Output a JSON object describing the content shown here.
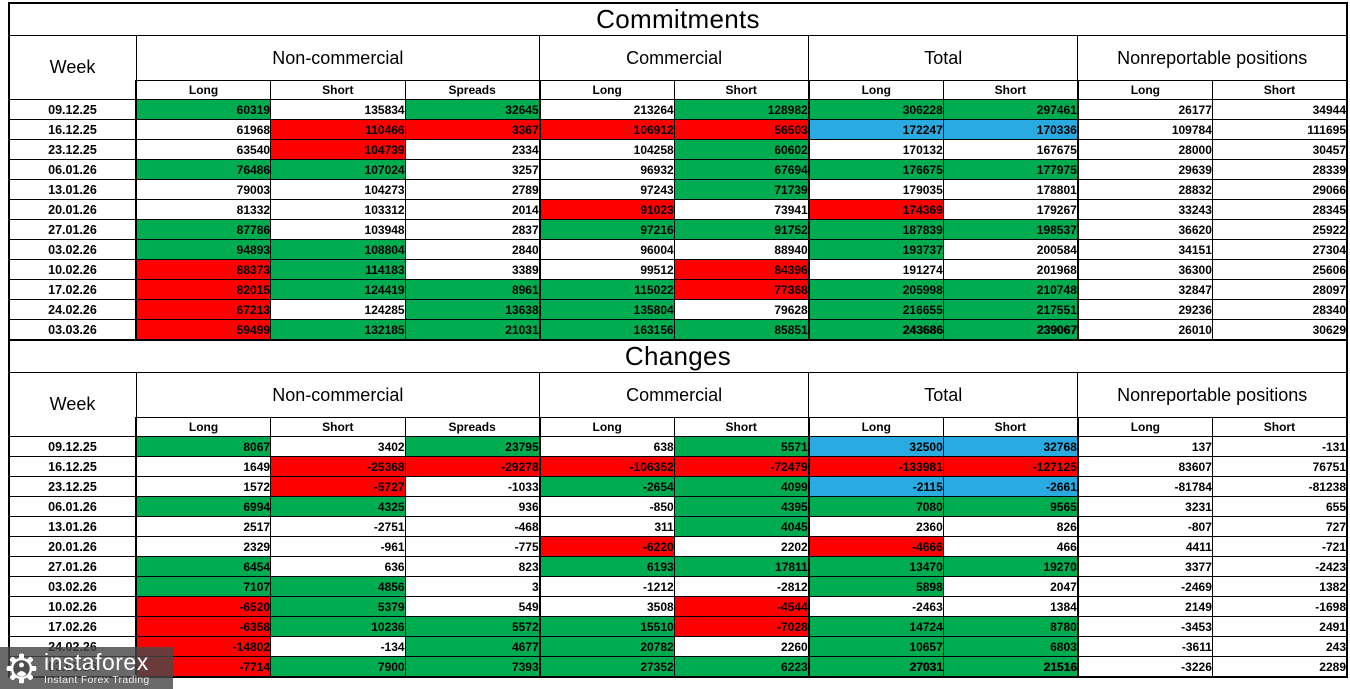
{
  "colors": {
    "G": "#00AC50",
    "R": "#FF0000",
    "B": "#29ABE2",
    "W": "#FFFFFF",
    "border": "#000000",
    "watermark_bg": "#484848"
  },
  "watermark": {
    "brand": "instaforex",
    "tagline": "Instant Forex Trading",
    "logo": "gear-person-icon"
  },
  "chart_data": [
    {
      "type": "table",
      "title": "Commitments",
      "week_label": "Week",
      "groups": [
        {
          "label": "Non-commercial",
          "cols": [
            "Long",
            "Short",
            "Spreads"
          ]
        },
        {
          "label": "Commercial",
          "cols": [
            "Long",
            "Short"
          ]
        },
        {
          "label": "Total",
          "cols": [
            "Long",
            "Short"
          ]
        },
        {
          "label": "Nonreportable positions",
          "cols": [
            "Long",
            "Short"
          ]
        }
      ],
      "rows": [
        {
          "week": "09.12.25",
          "cells": [
            [
              60319,
              "G"
            ],
            [
              135834,
              "W"
            ],
            [
              32645,
              "G"
            ],
            [
              213264,
              "W"
            ],
            [
              128982,
              "G"
            ],
            [
              306228,
              "G"
            ],
            [
              297461,
              "G"
            ],
            [
              26177,
              "W"
            ],
            [
              34944,
              "W"
            ]
          ]
        },
        {
          "week": "16.12.25",
          "cells": [
            [
              61968,
              "W"
            ],
            [
              110466,
              "R"
            ],
            [
              3367,
              "R"
            ],
            [
              106912,
              "R"
            ],
            [
              56503,
              "R"
            ],
            [
              172247,
              "B"
            ],
            [
              170336,
              "B"
            ],
            [
              109784,
              "W"
            ],
            [
              111695,
              "W"
            ]
          ]
        },
        {
          "week": "23.12.25",
          "cells": [
            [
              63540,
              "W"
            ],
            [
              104739,
              "R"
            ],
            [
              2334,
              "W"
            ],
            [
              104258,
              "W"
            ],
            [
              60602,
              "G"
            ],
            [
              170132,
              "W"
            ],
            [
              167675,
              "W"
            ],
            [
              28000,
              "W"
            ],
            [
              30457,
              "W"
            ]
          ]
        },
        {
          "week": "06.01.26",
          "cells": [
            [
              76486,
              "G"
            ],
            [
              107024,
              "G"
            ],
            [
              3257,
              "W"
            ],
            [
              96932,
              "W"
            ],
            [
              67694,
              "G"
            ],
            [
              176675,
              "G"
            ],
            [
              177975,
              "G"
            ],
            [
              29639,
              "W"
            ],
            [
              28339,
              "W"
            ]
          ]
        },
        {
          "week": "13.01.26",
          "cells": [
            [
              79003,
              "W"
            ],
            [
              104273,
              "W"
            ],
            [
              2789,
              "W"
            ],
            [
              97243,
              "W"
            ],
            [
              71739,
              "G"
            ],
            [
              179035,
              "W"
            ],
            [
              178801,
              "W"
            ],
            [
              28832,
              "W"
            ],
            [
              29066,
              "W"
            ]
          ]
        },
        {
          "week": "20.01.26",
          "cells": [
            [
              81332,
              "W"
            ],
            [
              103312,
              "W"
            ],
            [
              2014,
              "W"
            ],
            [
              91023,
              "R"
            ],
            [
              73941,
              "W"
            ],
            [
              174369,
              "R"
            ],
            [
              179267,
              "W"
            ],
            [
              33243,
              "W"
            ],
            [
              28345,
              "W"
            ]
          ]
        },
        {
          "week": "27.01.26",
          "cells": [
            [
              87786,
              "G"
            ],
            [
              103948,
              "W"
            ],
            [
              2837,
              "W"
            ],
            [
              97216,
              "G"
            ],
            [
              91752,
              "G"
            ],
            [
              187839,
              "G"
            ],
            [
              198537,
              "G"
            ],
            [
              36620,
              "W"
            ],
            [
              25922,
              "W"
            ]
          ]
        },
        {
          "week": "03.02.26",
          "cells": [
            [
              94893,
              "G"
            ],
            [
              108804,
              "G"
            ],
            [
              2840,
              "W"
            ],
            [
              96004,
              "W"
            ],
            [
              88940,
              "W"
            ],
            [
              193737,
              "G"
            ],
            [
              200584,
              "W"
            ],
            [
              34151,
              "W"
            ],
            [
              27304,
              "W"
            ]
          ]
        },
        {
          "week": "10.02.26",
          "cells": [
            [
              88373,
              "R"
            ],
            [
              114183,
              "G"
            ],
            [
              3389,
              "W"
            ],
            [
              99512,
              "W"
            ],
            [
              84396,
              "R"
            ],
            [
              191274,
              "W"
            ],
            [
              201968,
              "W"
            ],
            [
              36300,
              "W"
            ],
            [
              25606,
              "W"
            ]
          ]
        },
        {
          "week": "17.02.26",
          "cells": [
            [
              82015,
              "R"
            ],
            [
              124419,
              "G"
            ],
            [
              8961,
              "G"
            ],
            [
              115022,
              "G"
            ],
            [
              77368,
              "R"
            ],
            [
              205998,
              "G"
            ],
            [
              210748,
              "G"
            ],
            [
              32847,
              "W"
            ],
            [
              28097,
              "W"
            ]
          ]
        },
        {
          "week": "24.02.26",
          "cells": [
            [
              67213,
              "R"
            ],
            [
              124285,
              "W"
            ],
            [
              13638,
              "G"
            ],
            [
              135804,
              "G"
            ],
            [
              79628,
              "W"
            ],
            [
              216655,
              "G"
            ],
            [
              217551,
              "G"
            ],
            [
              29236,
              "W"
            ],
            [
              28340,
              "W"
            ]
          ]
        },
        {
          "week": "03.03.26",
          "cells": [
            [
              59499,
              "R"
            ],
            [
              132185,
              "G"
            ],
            [
              21031,
              "G"
            ],
            [
              163156,
              "G"
            ],
            [
              85851,
              "G"
            ],
            [
              243686,
              "G",
              true
            ],
            [
              239067,
              "G",
              true
            ],
            [
              26010,
              "W"
            ],
            [
              30629,
              "W"
            ]
          ]
        }
      ]
    },
    {
      "type": "table",
      "title": "Changes",
      "week_label": "Week",
      "groups": [
        {
          "label": "Non-commercial",
          "cols": [
            "Long",
            "Short",
            "Spreads"
          ]
        },
        {
          "label": "Commercial",
          "cols": [
            "Long",
            "Short"
          ]
        },
        {
          "label": "Total",
          "cols": [
            "Long",
            "Short"
          ]
        },
        {
          "label": "Nonreportable positions",
          "cols": [
            "Long",
            "Short"
          ]
        }
      ],
      "rows": [
        {
          "week": "09.12.25",
          "cells": [
            [
              8067,
              "G"
            ],
            [
              3402,
              "W"
            ],
            [
              23795,
              "G"
            ],
            [
              638,
              "W"
            ],
            [
              5571,
              "G"
            ],
            [
              32500,
              "B"
            ],
            [
              32768,
              "B"
            ],
            [
              137,
              "W"
            ],
            [
              -131,
              "W"
            ]
          ]
        },
        {
          "week": "16.12.25",
          "cells": [
            [
              1649,
              "W"
            ],
            [
              -25368,
              "R"
            ],
            [
              -29278,
              "R"
            ],
            [
              -106352,
              "R"
            ],
            [
              -72479,
              "R"
            ],
            [
              -133981,
              "R"
            ],
            [
              -127125,
              "R"
            ],
            [
              83607,
              "W"
            ],
            [
              76751,
              "W"
            ]
          ]
        },
        {
          "week": "23.12.25",
          "cells": [
            [
              1572,
              "W"
            ],
            [
              -5727,
              "R"
            ],
            [
              -1033,
              "W"
            ],
            [
              -2654,
              "G"
            ],
            [
              4099,
              "G"
            ],
            [
              -2115,
              "B"
            ],
            [
              -2661,
              "B"
            ],
            [
              -81784,
              "W"
            ],
            [
              -81238,
              "W"
            ]
          ]
        },
        {
          "week": "06.01.26",
          "cells": [
            [
              6994,
              "G"
            ],
            [
              4325,
              "G"
            ],
            [
              936,
              "W"
            ],
            [
              -850,
              "W"
            ],
            [
              4395,
              "G"
            ],
            [
              7080,
              "G"
            ],
            [
              9565,
              "G"
            ],
            [
              3231,
              "W"
            ],
            [
              655,
              "W"
            ]
          ]
        },
        {
          "week": "13.01.26",
          "cells": [
            [
              2517,
              "W"
            ],
            [
              -2751,
              "W"
            ],
            [
              -468,
              "W"
            ],
            [
              311,
              "W"
            ],
            [
              4045,
              "G"
            ],
            [
              2360,
              "W"
            ],
            [
              826,
              "W"
            ],
            [
              -807,
              "W"
            ],
            [
              727,
              "W"
            ]
          ]
        },
        {
          "week": "20.01.26",
          "cells": [
            [
              2329,
              "W"
            ],
            [
              -961,
              "W"
            ],
            [
              -775,
              "W"
            ],
            [
              -6220,
              "R"
            ],
            [
              2202,
              "W"
            ],
            [
              -4666,
              "R"
            ],
            [
              466,
              "W"
            ],
            [
              4411,
              "W"
            ],
            [
              -721,
              "W"
            ]
          ]
        },
        {
          "week": "27.01.26",
          "cells": [
            [
              6454,
              "G"
            ],
            [
              636,
              "W"
            ],
            [
              823,
              "W"
            ],
            [
              6193,
              "G"
            ],
            [
              17811,
              "G"
            ],
            [
              13470,
              "G"
            ],
            [
              19270,
              "G"
            ],
            [
              3377,
              "W"
            ],
            [
              -2423,
              "W"
            ]
          ]
        },
        {
          "week": "03.02.26",
          "cells": [
            [
              7107,
              "G"
            ],
            [
              4856,
              "G"
            ],
            [
              3,
              "W"
            ],
            [
              -1212,
              "W"
            ],
            [
              -2812,
              "W"
            ],
            [
              5898,
              "G"
            ],
            [
              2047,
              "W"
            ],
            [
              -2469,
              "W"
            ],
            [
              1382,
              "W"
            ]
          ]
        },
        {
          "week": "10.02.26",
          "cells": [
            [
              -6520,
              "R"
            ],
            [
              5379,
              "G"
            ],
            [
              549,
              "W"
            ],
            [
              3508,
              "W"
            ],
            [
              -4544,
              "R"
            ],
            [
              -2463,
              "W"
            ],
            [
              1384,
              "W"
            ],
            [
              2149,
              "W"
            ],
            [
              -1698,
              "W"
            ]
          ]
        },
        {
          "week": "17.02.26",
          "cells": [
            [
              -6358,
              "R"
            ],
            [
              10236,
              "G"
            ],
            [
              5572,
              "G"
            ],
            [
              15510,
              "G"
            ],
            [
              -7028,
              "R"
            ],
            [
              14724,
              "G"
            ],
            [
              8780,
              "G"
            ],
            [
              -3453,
              "W"
            ],
            [
              2491,
              "W"
            ]
          ]
        },
        {
          "week": "24.02.26",
          "cells": [
            [
              -14802,
              "R"
            ],
            [
              -134,
              "W"
            ],
            [
              4677,
              "G"
            ],
            [
              20782,
              "G"
            ],
            [
              2260,
              "W"
            ],
            [
              10657,
              "G"
            ],
            [
              6803,
              "G"
            ],
            [
              -3611,
              "W"
            ],
            [
              243,
              "W"
            ]
          ]
        },
        {
          "week": "03.03.26",
          "cells": [
            [
              -7714,
              "R"
            ],
            [
              7900,
              "G"
            ],
            [
              7393,
              "G"
            ],
            [
              27352,
              "G"
            ],
            [
              6223,
              "G"
            ],
            [
              27031,
              "G",
              true
            ],
            [
              21516,
              "G",
              true
            ],
            [
              -3226,
              "W"
            ],
            [
              2289,
              "W"
            ]
          ]
        }
      ]
    }
  ]
}
